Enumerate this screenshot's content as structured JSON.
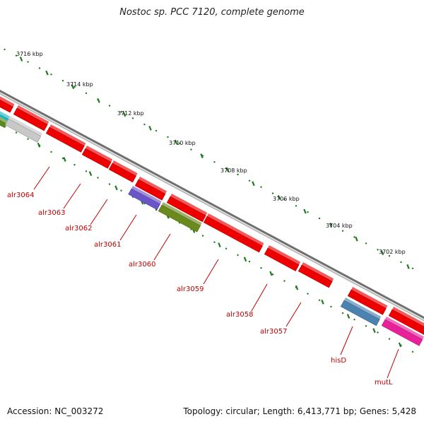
{
  "title": "Nostoc sp. PCC 7120, complete genome",
  "footer": {
    "accession": "Accession: NC_003272",
    "topology": "Topology: circular; Length: 6,413,771 bp; Genes: 5,428"
  },
  "colors": {
    "gene_forward": "#ee0000",
    "tick": "#1f7a1f",
    "backbone": "#8a8a8a",
    "label": "#c00000"
  },
  "scale_labels": [
    "3716 kbp",
    "3714 kbp",
    "3712 kbp",
    "3710 kbp",
    "3708 kbp",
    "3706 kbp",
    "3704 kbp",
    "3702 kbp"
  ],
  "gene_labels": [
    "alr3064",
    "alr3063",
    "alr3062",
    "alr3061",
    "alr3060",
    "alr3059",
    "alr3058",
    "alr3057",
    "hisD",
    "mutL"
  ]
}
